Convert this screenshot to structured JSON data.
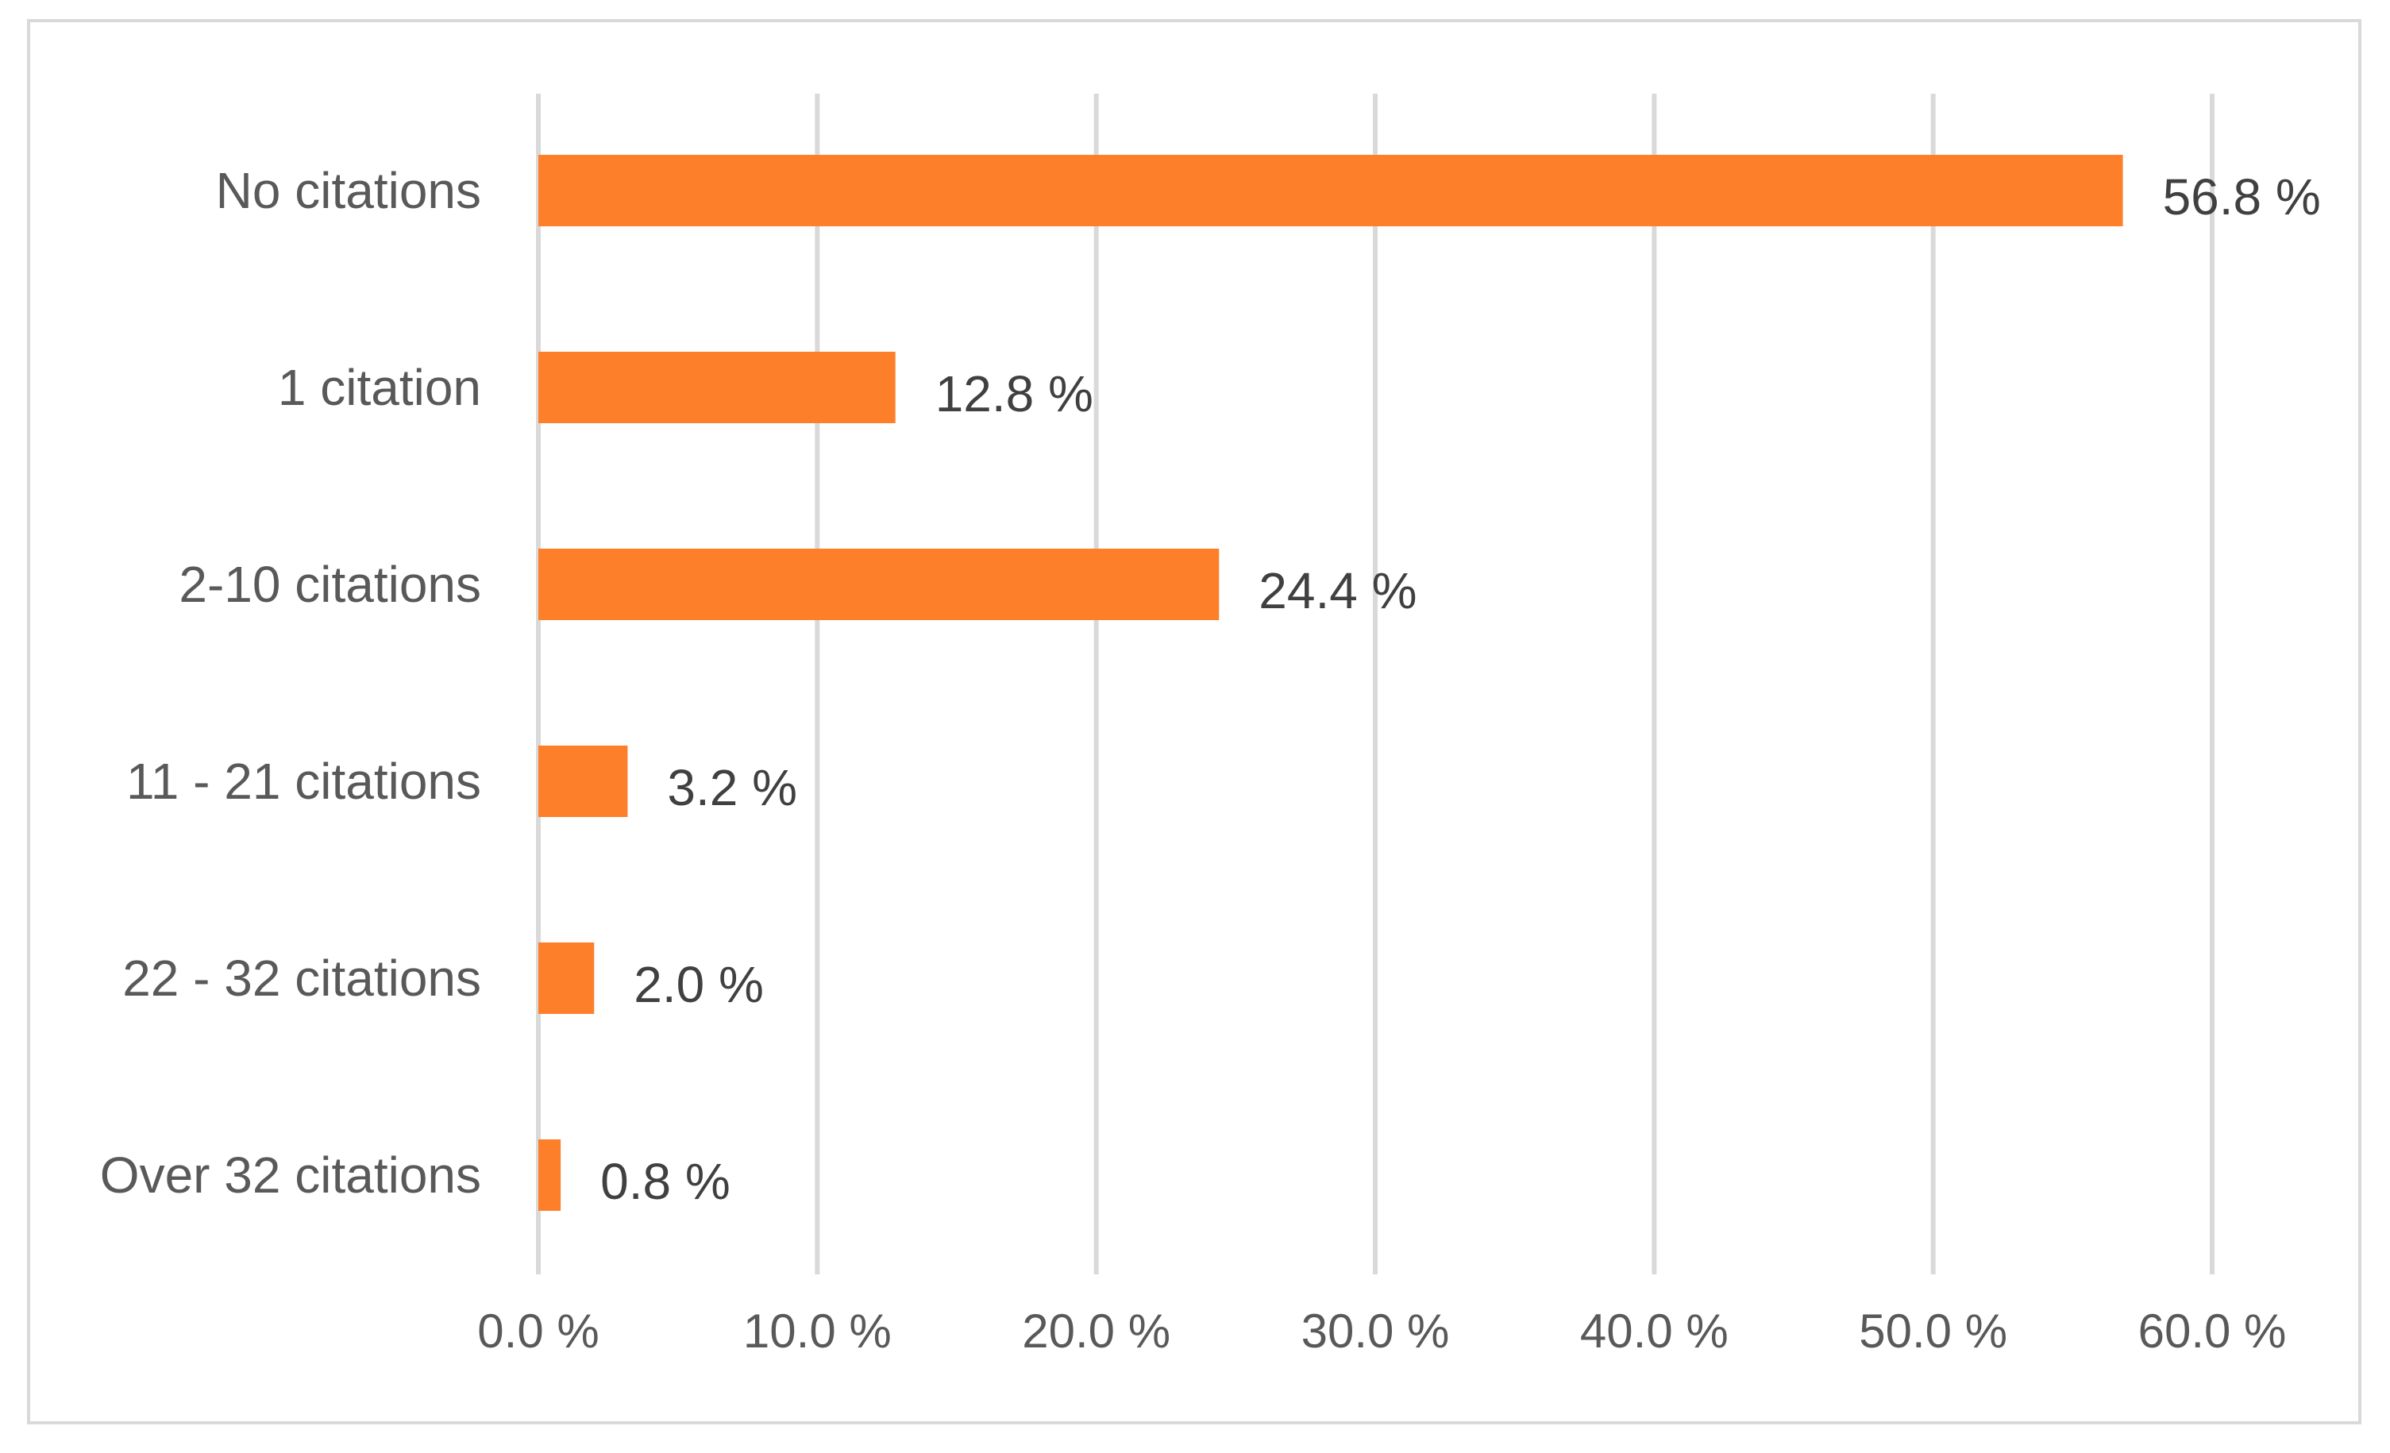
{
  "chart_data": {
    "type": "bar",
    "orientation": "horizontal",
    "categories": [
      "No citations",
      "1 citation",
      "2-10 citations",
      "11 - 21 citations",
      "22 - 32 citations",
      "Over 32 citations"
    ],
    "values": [
      56.8,
      12.8,
      24.4,
      3.2,
      2.0,
      0.8
    ],
    "data_labels": [
      "56.8 %",
      "12.8 %",
      "24.4 %",
      "3.2 %",
      "2.0 %",
      "0.8 %"
    ],
    "xlim": [
      0,
      60
    ],
    "xticks": [
      0,
      10,
      20,
      30,
      40,
      50,
      60
    ],
    "xtick_labels": [
      "0.0 %",
      "10.0 %",
      "20.0 %",
      "30.0 %",
      "40.0 %",
      "50.0 %",
      "60.0 %"
    ],
    "title": "",
    "xlabel": "",
    "ylabel": "",
    "grid": "vertical",
    "legend": "none",
    "bar_color": "#fe7f2a",
    "grid_color": "#d9d9d9"
  }
}
